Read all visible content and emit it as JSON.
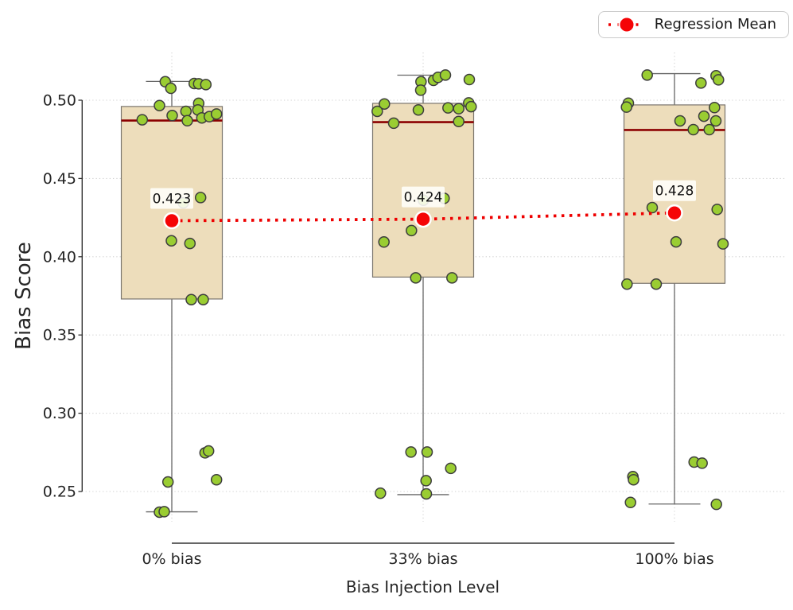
{
  "colors": {
    "box_fill": "#EDDDBB",
    "box_edge": "#7a756d",
    "whisker": "#666666",
    "median": "#8B0000",
    "point_fill": "#9ACD32",
    "point_edge": "#3d3d3d",
    "mean_dot": "#F50406",
    "mean_dot_edge": "#ffffff",
    "regression_line": "#EE0000",
    "grid": "#d2d2d2",
    "axis_spine": "#333333",
    "text": "#262626",
    "mean_label_bg": "rgba(255,255,250,0.88)"
  },
  "chart_data": {
    "type": "box",
    "title": "",
    "xlabel": "Bias Injection Level",
    "ylabel": "Bias Score",
    "categories": [
      "0% bias",
      "33% bias",
      "100% bias"
    ],
    "y_ticks": [
      0.25,
      0.3,
      0.35,
      0.4,
      0.45,
      0.5
    ],
    "ylim": [
      0.23,
      0.525
    ],
    "grid": "dotted horizontal and vertical gridlines",
    "legend": {
      "label": "Regression Mean",
      "position": "upper right"
    },
    "boxes": [
      {
        "category": "0% bias",
        "whisker_low": 0.237,
        "q1": 0.373,
        "median": 0.487,
        "q3": 0.496,
        "whisker_high": 0.512
      },
      {
        "category": "33% bias",
        "whisker_low": 0.248,
        "q1": 0.387,
        "median": 0.486,
        "q3": 0.498,
        "whisker_high": 0.516
      },
      {
        "category": "100% bias",
        "whisker_low": 0.242,
        "q1": 0.383,
        "median": 0.481,
        "q3": 0.497,
        "whisker_high": 0.517
      }
    ],
    "regression_means": [
      {
        "category": "0% bias",
        "mean": 0.423,
        "label": "0.423"
      },
      {
        "category": "33% bias",
        "mean": 0.424,
        "label": "0.424"
      },
      {
        "category": "100% bias",
        "mean": 0.428,
        "label": "0.428"
      }
    ],
    "jitter_points_dx_value": [
      [
        [
          -8.2,
          0.5118
        ],
        [
          -1.2,
          0.5076
        ],
        [
          28.2,
          0.5107
        ],
        [
          33.8,
          0.5105
        ],
        [
          42.8,
          0.51
        ],
        [
          -15.5,
          0.4966
        ],
        [
          0.5,
          0.4902
        ],
        [
          -37.2,
          0.4875
        ],
        [
          17.8,
          0.4929
        ],
        [
          19.5,
          0.4869
        ],
        [
          33.8,
          0.498
        ],
        [
          32.8,
          0.4938
        ],
        [
          37.8,
          0.4887
        ],
        [
          47.2,
          0.4895
        ],
        [
          56.2,
          0.4912
        ],
        [
          36.2,
          0.4378
        ],
        [
          14.5,
          0.4344
        ],
        [
          -0.5,
          0.4102
        ],
        [
          22.8,
          0.4085
        ],
        [
          24.5,
          0.3726
        ],
        [
          39.5,
          0.3726
        ],
        [
          41.8,
          0.2747
        ],
        [
          46.2,
          0.2759
        ],
        [
          -4.8,
          0.2561
        ],
        [
          56.2,
          0.2575
        ],
        [
          -15.5,
          0.2368
        ],
        [
          -9.5,
          0.2371
        ]
      ],
      [
        [
          -2.7,
          0.5118
        ],
        [
          -3.0,
          0.5064
        ],
        [
          13.0,
          0.5127
        ],
        [
          18.7,
          0.5146
        ],
        [
          28.0,
          0.5161
        ],
        [
          58.0,
          0.5132
        ],
        [
          -48.7,
          0.4976
        ],
        [
          -57.7,
          0.4929
        ],
        [
          -6.0,
          0.4938
        ],
        [
          31.3,
          0.4951
        ],
        [
          44.7,
          0.4946
        ],
        [
          57.3,
          0.4983
        ],
        [
          60.3,
          0.4959
        ],
        [
          -37.0,
          0.4853
        ],
        [
          44.7,
          0.4864
        ],
        [
          0.3,
          0.4361
        ],
        [
          26.3,
          0.4373
        ],
        [
          -14.7,
          0.4167
        ],
        [
          -49.3,
          0.4094
        ],
        [
          -9.3,
          0.3865
        ],
        [
          36.3,
          0.3865
        ],
        [
          -15.3,
          0.2752
        ],
        [
          5.0,
          0.2752
        ],
        [
          34.7,
          0.2648
        ],
        [
          3.7,
          0.2569
        ],
        [
          -53.7,
          0.2489
        ],
        [
          4.0,
          0.2485
        ]
      ],
      [
        [
          -34.3,
          0.5161
        ],
        [
          33.3,
          0.511
        ],
        [
          52.3,
          0.5156
        ],
        [
          55.3,
          0.513
        ],
        [
          -58.0,
          0.4981
        ],
        [
          -60.3,
          0.4956
        ],
        [
          50.3,
          0.4953
        ],
        [
          7.0,
          0.4868
        ],
        [
          37.0,
          0.4898
        ],
        [
          52.0,
          0.4868
        ],
        [
          23.7,
          0.4812
        ],
        [
          43.7,
          0.4812
        ],
        [
          -28.0,
          0.4314
        ],
        [
          53.7,
          0.4302
        ],
        [
          2.0,
          0.4095
        ],
        [
          61.0,
          0.4082
        ],
        [
          -59.7,
          0.3825
        ],
        [
          -23.0,
          0.3825
        ],
        [
          24.7,
          0.2688
        ],
        [
          34.7,
          0.2681
        ],
        [
          -52.3,
          0.2595
        ],
        [
          -51.5,
          0.2575
        ],
        [
          -55.3,
          0.243
        ],
        [
          52.7,
          0.2418
        ]
      ]
    ]
  }
}
